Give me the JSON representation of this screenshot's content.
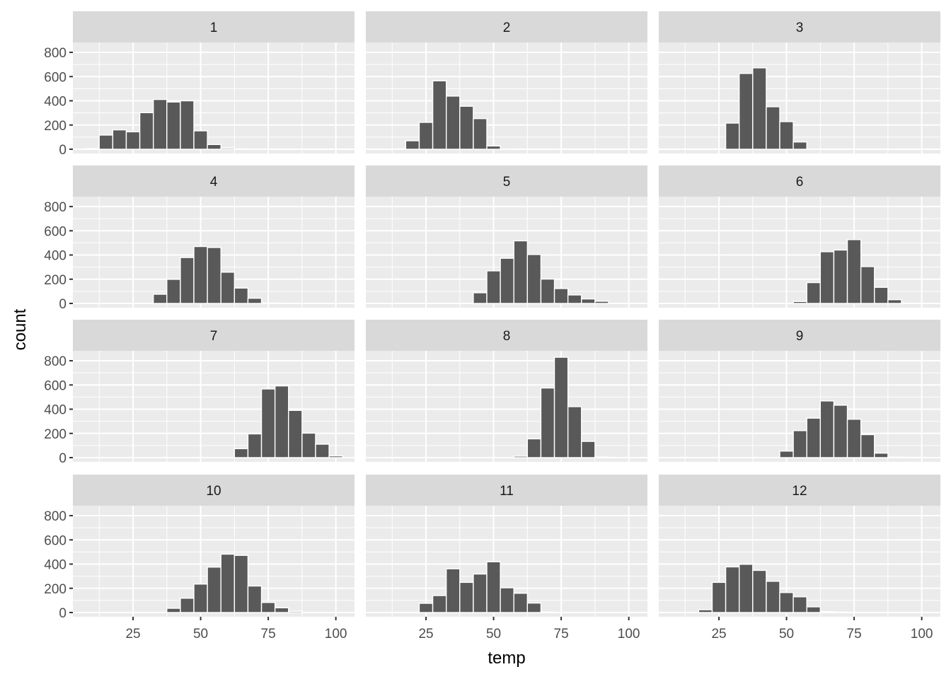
{
  "chart_data": {
    "type": "bar",
    "subtype": "faceted histogram",
    "xlabel": "temp",
    "ylabel": "count",
    "binwidth": 5,
    "xlim": [
      2.75,
      106.9
    ],
    "ylim": [
      -35,
      882
    ],
    "x_ticks": [
      25,
      50,
      75,
      100
    ],
    "y_ticks": [
      0,
      200,
      400,
      600,
      800
    ],
    "grid": true,
    "colors": {
      "bar_fill": "#595959",
      "bar_outline": "#FFFFFF",
      "panel_bg": "#EBEBEB",
      "strip_bg": "#D9D9D9",
      "grid": "#FFFFFF"
    },
    "facets": [
      {
        "label": "1",
        "x": [
          10,
          15,
          20,
          25,
          30,
          35,
          40,
          45,
          50,
          55,
          60,
          65,
          70
        ],
        "counts": [
          5,
          117,
          160,
          144,
          302,
          411,
          390,
          400,
          152,
          39,
          10,
          3,
          2
        ]
      },
      {
        "label": "2",
        "x": [
          15,
          20,
          25,
          30,
          35,
          40,
          45,
          50,
          55
        ],
        "counts": [
          3,
          70,
          222,
          565,
          439,
          355,
          253,
          27,
          2
        ]
      },
      {
        "label": "3",
        "x": [
          25,
          30,
          35,
          40,
          45,
          50,
          55,
          60
        ],
        "counts": [
          3,
          216,
          626,
          672,
          351,
          228,
          60,
          2
        ]
      },
      {
        "label": "4",
        "x": [
          30,
          35,
          40,
          45,
          50,
          55,
          60,
          65,
          70,
          75,
          80,
          85
        ],
        "counts": [
          2,
          76,
          199,
          379,
          470,
          462,
          258,
          127,
          43,
          3,
          3,
          2
        ]
      },
      {
        "label": "5",
        "x": [
          45,
          50,
          55,
          60,
          65,
          70,
          75,
          80,
          85,
          90
        ],
        "counts": [
          88,
          269,
          373,
          517,
          404,
          201,
          123,
          70,
          37,
          18
        ]
      },
      {
        "label": "6",
        "x": [
          55,
          60,
          65,
          70,
          75,
          80,
          85,
          90,
          95
        ],
        "counts": [
          16,
          172,
          427,
          441,
          527,
          304,
          133,
          31,
          3
        ]
      },
      {
        "label": "7",
        "x": [
          65,
          70,
          75,
          80,
          85,
          90,
          95,
          100
        ],
        "counts": [
          74,
          196,
          567,
          592,
          390,
          202,
          111,
          14
        ]
      },
      {
        "label": "8",
        "x": [
          60,
          65,
          70,
          75,
          80,
          85,
          90
        ],
        "counts": [
          12,
          155,
          575,
          829,
          421,
          134,
          5
        ]
      },
      {
        "label": "9",
        "x": [
          50,
          55,
          60,
          65,
          70,
          75,
          80,
          85,
          90,
          95
        ],
        "counts": [
          54,
          223,
          326,
          468,
          433,
          317,
          190,
          37,
          4,
          3
        ]
      },
      {
        "label": "10",
        "x": [
          35,
          40,
          45,
          50,
          55,
          60,
          65,
          70,
          75,
          80,
          85
        ],
        "counts": [
          2,
          35,
          118,
          235,
          375,
          482,
          472,
          219,
          83,
          39,
          10
        ]
      },
      {
        "label": "11",
        "x": [
          20,
          25,
          30,
          35,
          40,
          45,
          50,
          55,
          60,
          65,
          70
        ],
        "counts": [
          2,
          76,
          140,
          361,
          249,
          318,
          419,
          204,
          159,
          78,
          4
        ]
      },
      {
        "label": "12",
        "x": [
          20,
          25,
          30,
          35,
          40,
          45,
          50,
          55,
          60,
          65,
          70
        ],
        "counts": [
          23,
          249,
          377,
          398,
          348,
          258,
          165,
          130,
          47,
          8,
          4
        ]
      }
    ]
  }
}
